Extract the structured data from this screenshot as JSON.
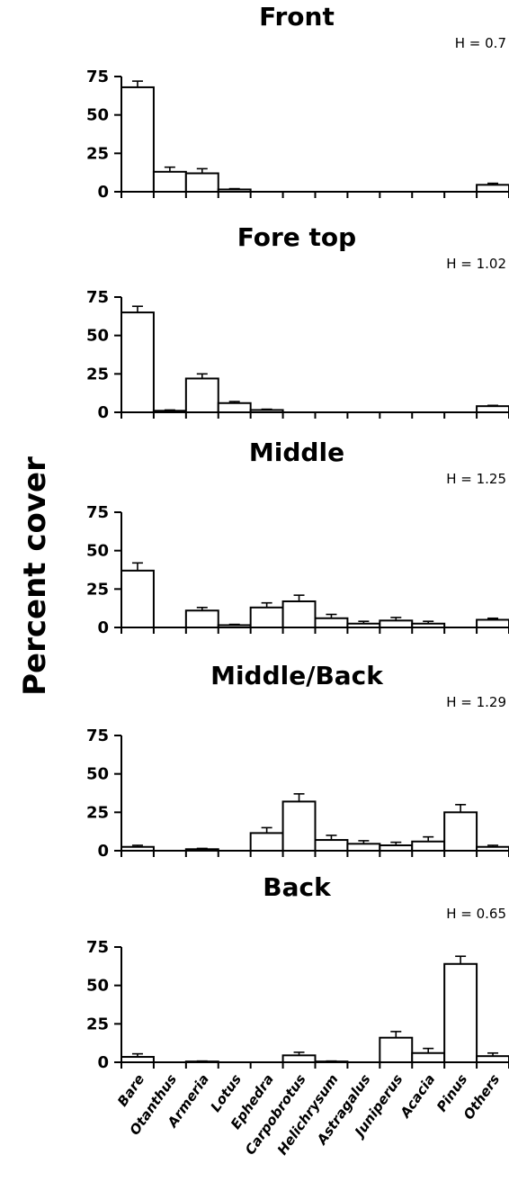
{
  "chart_data": {
    "type": "bar",
    "ylabel": "Percent cover",
    "categories": [
      "Bare",
      "Otanthus",
      "Armeria",
      "Lotus",
      "Ephedra",
      "Carpobrotus",
      "Helichrysum",
      "Astragalus",
      "Juniperus",
      "Acacia",
      "Pinus",
      "Others"
    ],
    "yticks": [
      0,
      25,
      50,
      75
    ],
    "ylim": [
      0,
      75
    ],
    "panels": [
      {
        "title": "Front",
        "h_label": "H = 0.7",
        "values": [
          68,
          13,
          12,
          1.5,
          0,
          0,
          0,
          0,
          0,
          0,
          0,
          4.5
        ],
        "errors": [
          4,
          3,
          3,
          0.5,
          0,
          0,
          0,
          0,
          0,
          0,
          0,
          1
        ]
      },
      {
        "title": "Fore top",
        "h_label": "H = 1.02",
        "values": [
          65,
          1,
          22,
          6,
          1.5,
          0,
          0,
          0,
          0,
          0,
          0,
          4
        ],
        "errors": [
          4,
          0.5,
          3,
          1,
          0.5,
          0,
          0,
          0,
          0,
          0,
          0,
          0.5
        ]
      },
      {
        "title": "Middle",
        "h_label": "H = 1.25",
        "values": [
          37,
          0,
          11,
          1.5,
          13,
          17,
          6,
          2.5,
          4.5,
          2.5,
          0,
          5
        ],
        "errors": [
          5,
          0,
          2,
          0.5,
          3,
          4,
          2.5,
          1.5,
          2,
          1.5,
          0,
          1
        ]
      },
      {
        "title": "Middle/Back",
        "h_label": "H = 1.29",
        "values": [
          2.5,
          0,
          1,
          0,
          11.5,
          32,
          7,
          4.5,
          3.5,
          6,
          25,
          2.5
        ],
        "errors": [
          1,
          0,
          0.5,
          0,
          3.5,
          5,
          3,
          2,
          2,
          3,
          5,
          1
        ]
      },
      {
        "title": "Back",
        "h_label": "H = 0.65",
        "values": [
          3.5,
          0,
          0.5,
          0,
          0,
          4.5,
          0.5,
          0,
          16,
          6,
          64,
          4
        ],
        "errors": [
          2,
          0,
          0.3,
          0,
          0,
          2,
          0.3,
          0,
          4,
          3,
          5,
          2
        ]
      }
    ]
  }
}
